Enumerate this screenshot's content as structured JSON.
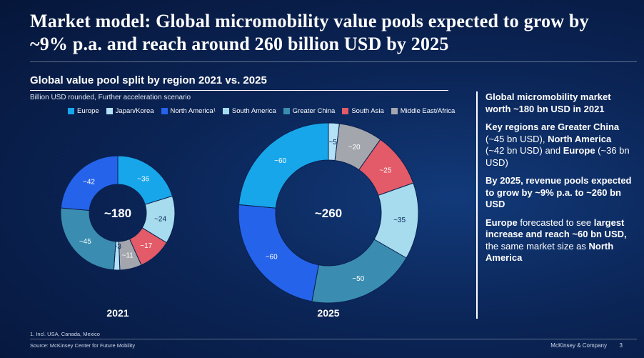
{
  "title": "Market model: Global micromobility value pools expected to grow by ~9% p.a. and reach around 260 billion USD by 2025",
  "chart_data": {
    "type": "donut",
    "title": "Global value pool split by region 2021 vs. 2025",
    "subtitle": "Billion USD rounded, Further acceleration scenario",
    "categories": [
      "Europe",
      "Japan/Korea",
      "North America¹",
      "South America",
      "Greater China",
      "South Asia",
      "Middle East/Africa"
    ],
    "colors": [
      "#17a6ea",
      "#b4e1f5",
      "#2563eb",
      "#a6dcee",
      "#3a8db0",
      "#e35a68",
      "#a3a7ad"
    ],
    "label_order": [
      "Europe",
      "South America",
      "South Asia",
      "Middle East/Africa",
      "Japan/Korea",
      "Greater China",
      "North America¹"
    ],
    "series": [
      {
        "name": "2021",
        "total_label": "~180",
        "values": [
          36,
          24,
          17,
          11,
          3,
          45,
          42
        ],
        "value_labels": [
          "~36",
          "~24",
          "~17",
          "~11",
          "~3",
          "~45",
          "~42"
        ]
      },
      {
        "name": "2025",
        "total_label": "~260",
        "values": [
          5,
          20,
          25,
          35,
          50,
          60,
          60
        ],
        "value_labels": [
          "~5",
          "~20",
          "~25",
          "~35",
          "~50",
          "~60",
          "~60"
        ],
        "label_order": [
          "Japan/Korea",
          "Middle East/Africa",
          "South Asia",
          "South America",
          "Greater China",
          "North America¹",
          "Europe"
        ]
      }
    ]
  },
  "side_panel": {
    "p1": "Global micromobility market worth ~180 bn USD in 2021",
    "p2_a": "Key regions are Greater China",
    "p2_b": " (~45 bn USD), ",
    "p2_c": "North America",
    "p2_d": " (~42 bn USD) and ",
    "p2_e": "Europe",
    "p2_f": " (~36 bn USD)",
    "p3": "By 2025, revenue pools expected to grow by ~9% p.a. to ~260 bn USD",
    "p4_a": "Europe",
    "p4_b": " forecasted to see ",
    "p4_c": "largest increase and reach ~60 bn USD,",
    "p4_d": " the same market size as ",
    "p4_e": "North America"
  },
  "footnote": "1. Incl. USA, Canada, Mexico",
  "source": "Source: McKinsey Center for Future Mobility",
  "brand": "McKinsey & Company",
  "page_number": "3"
}
